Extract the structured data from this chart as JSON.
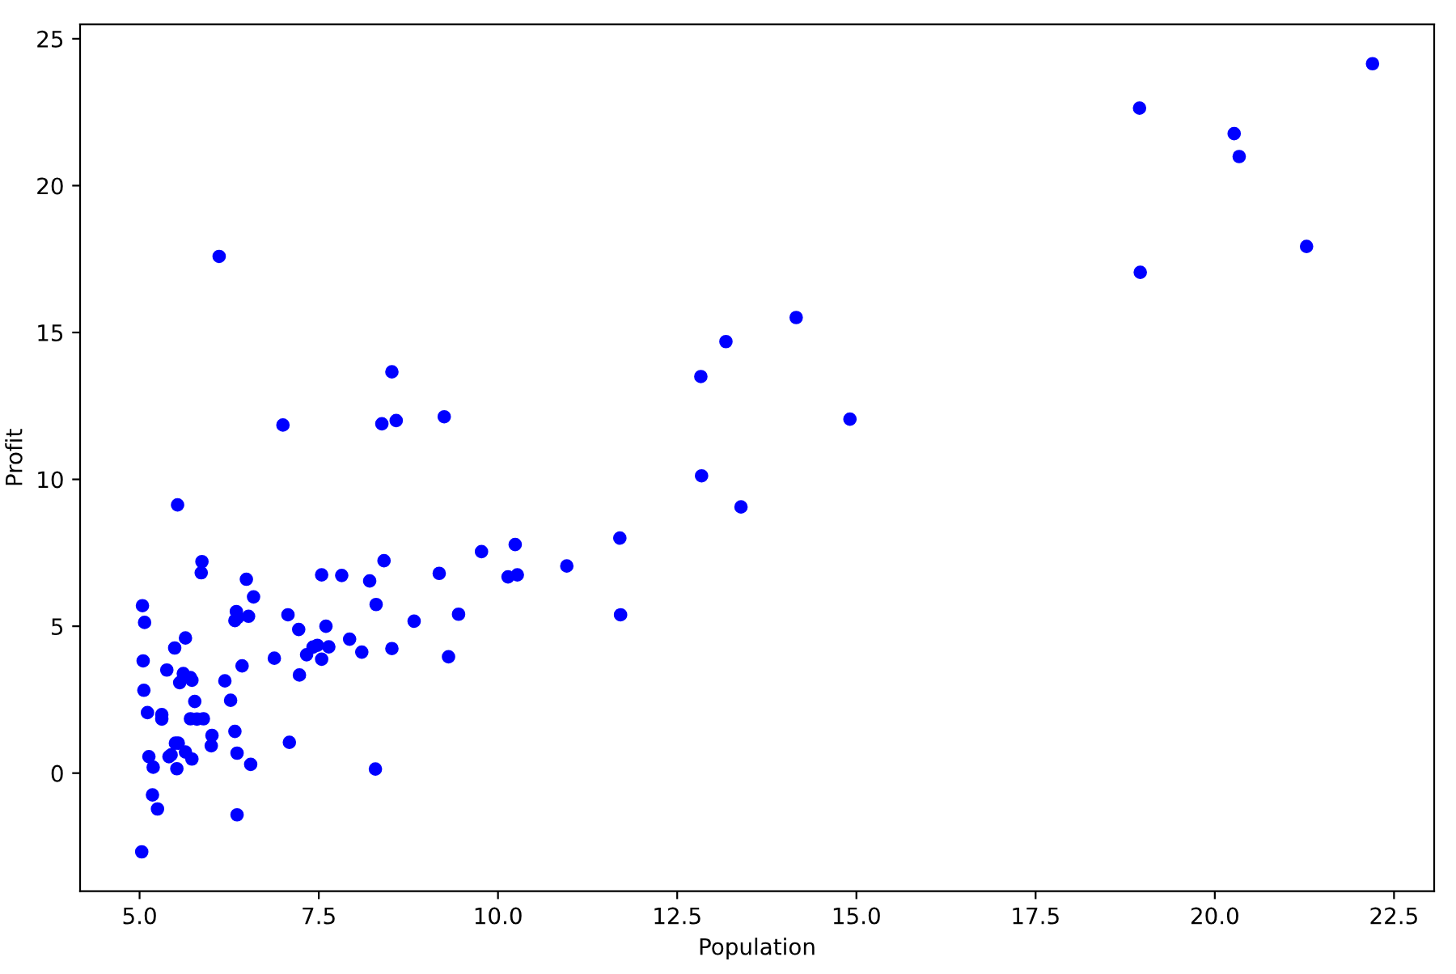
{
  "chart_data": {
    "type": "scatter",
    "xlabel": "Population",
    "ylabel": "Profit",
    "color": "#0000ff",
    "marker": "circle",
    "grid": false,
    "xlim": [
      4.17,
      23.06
    ],
    "ylim": [
      -4.02,
      25.49
    ],
    "xticks": [
      {
        "value": 5,
        "label": "5.0"
      },
      {
        "value": 7.5,
        "label": "7.5"
      },
      {
        "value": 10,
        "label": "10.0"
      },
      {
        "value": 12.5,
        "label": "12.5"
      },
      {
        "value": 15,
        "label": "15.0"
      },
      {
        "value": 17.5,
        "label": "17.5"
      },
      {
        "value": 20,
        "label": "20.0"
      },
      {
        "value": 22.5,
        "label": "22.5"
      }
    ],
    "yticks": [
      0,
      5,
      10,
      15,
      20,
      25
    ],
    "x": [
      6.11,
      5.53,
      8.52,
      7.0,
      5.86,
      8.38,
      7.48,
      8.58,
      6.49,
      5.05,
      5.71,
      14.16,
      5.73,
      8.41,
      5.64,
      5.38,
      6.37,
      5.13,
      6.43,
      7.07,
      6.19,
      20.27,
      5.49,
      6.33,
      5.56,
      18.95,
      12.83,
      10.96,
      13.18,
      22.2,
      5.25,
      6.59,
      9.25,
      5.89,
      8.21,
      7.93,
      8.1,
      5.61,
      12.84,
      6.35,
      5.41,
      6.88,
      11.71,
      5.77,
      7.82,
      7.09,
      5.07,
      5.8,
      11.7,
      5.54,
      7.54,
      5.31,
      7.42,
      7.6,
      6.33,
      6.36,
      6.27,
      5.64,
      9.31,
      9.45,
      8.83,
      5.18,
      21.28,
      14.91,
      18.96,
      7.22,
      8.3,
      10.24,
      5.5,
      20.34,
      10.14,
      7.33,
      6.01,
      7.23,
      5.03,
      6.55,
      7.54,
      5.04,
      10.27,
      5.11,
      5.73,
      5.19,
      6.36,
      9.77,
      6.52,
      8.52,
      9.18,
      6.0,
      5.52,
      5.06,
      5.71,
      7.64,
      5.87,
      5.31,
      8.29,
      13.39,
      5.44
    ],
    "values": [
      17.59,
      9.13,
      13.66,
      11.85,
      6.82,
      11.89,
      4.35,
      12.0,
      6.6,
      3.82,
      3.25,
      15.51,
      3.16,
      7.23,
      0.72,
      3.51,
      5.3,
      0.56,
      3.65,
      5.39,
      3.14,
      21.77,
      4.26,
      5.19,
      3.08,
      22.64,
      13.5,
      7.05,
      14.69,
      24.15,
      -1.22,
      6.0,
      12.13,
      1.85,
      6.54,
      4.56,
      4.12,
      3.39,
      10.12,
      5.5,
      0.56,
      3.91,
      5.39,
      2.44,
      6.73,
      1.05,
      5.13,
      1.84,
      8.0,
      1.02,
      6.75,
      1.84,
      4.29,
      5.0,
      1.42,
      -1.42,
      2.48,
      4.6,
      3.96,
      5.41,
      5.17,
      -0.74,
      17.93,
      12.05,
      17.05,
      4.89,
      5.74,
      7.78,
      1.02,
      20.99,
      6.68,
      4.03,
      1.28,
      3.34,
      -2.68,
      0.3,
      3.88,
      5.7,
      6.75,
      2.06,
      0.48,
      0.2,
      0.68,
      7.54,
      5.34,
      4.24,
      6.8,
      0.93,
      0.15,
      2.82,
      1.85,
      4.3,
      7.2,
      1.99,
      0.14,
      9.06,
      0.62
    ]
  }
}
